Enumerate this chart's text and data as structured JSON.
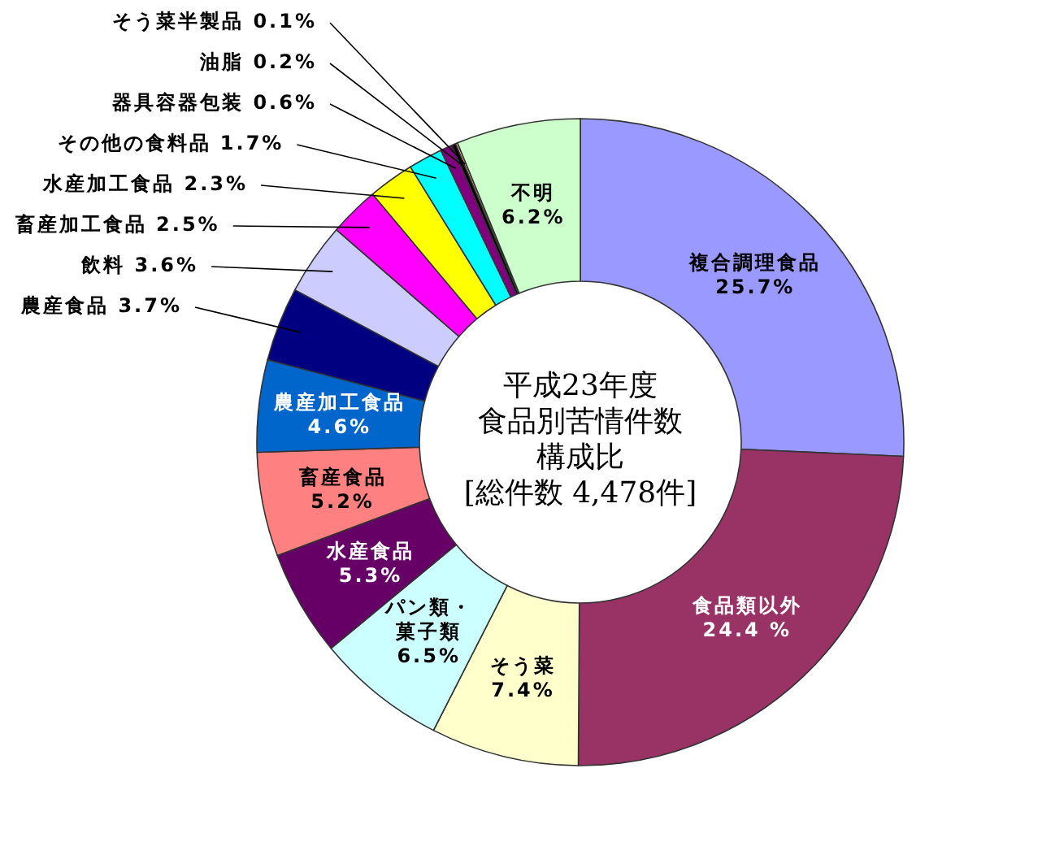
{
  "chart_data": {
    "type": "donut",
    "title": "平成23年度食品別苦情件数構成比",
    "subtitle": "[総件数 4,478件]",
    "categories": [
      "複合調理食品",
      "食品類以外",
      "そう菜",
      "パン類・菓子類",
      "水産食品",
      "畜産食品",
      "農産加工食品",
      "農産食品",
      "飲料",
      "畜産加工食品",
      "水産加工食品",
      "その他の食料品",
      "器具容器包装",
      "油脂",
      "そう菜半製品",
      "不明"
    ],
    "values": [
      25.7,
      24.4,
      7.4,
      6.5,
      5.3,
      5.2,
      4.6,
      3.7,
      3.6,
      2.5,
      2.3,
      1.7,
      0.6,
      0.2,
      0.1,
      6.2
    ],
    "value_labels": [
      "25.7%",
      "24.4 %",
      "7.4%",
      "6.5%",
      "5.3%",
      "5.2%",
      "4.6%",
      "3.7%",
      "3.6%",
      "2.5%",
      "2.3%",
      "1.7%",
      "0.6%",
      "0.2%",
      "0.1%",
      "6.2%"
    ],
    "colors": [
      "#9999ff",
      "#993366",
      "#ffffcc",
      "#ccffff",
      "#660066",
      "#ff8080",
      "#0066cc",
      "#000080",
      "#ccccff",
      "#ff00ff",
      "#ffff00",
      "#00ffff",
      "#800080",
      "#000000",
      "#ffcc99",
      "#ccffcc"
    ]
  }
}
